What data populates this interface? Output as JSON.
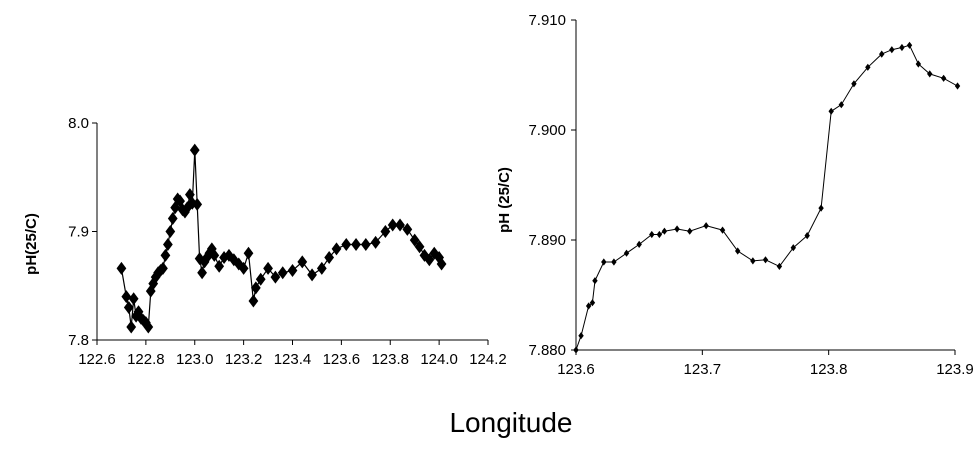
{
  "shared_xlabel": "Longitude",
  "colors": {
    "series": "#000000",
    "background": "#ffffff"
  },
  "chart_data": [
    {
      "type": "scatter",
      "title": "",
      "xlabel": "",
      "ylabel": "pH(25/C)",
      "xlim": [
        122.6,
        124.2
      ],
      "ylim": [
        7.8,
        8.0
      ],
      "xticks": [
        "122.6",
        "122.8",
        "123.0",
        "123.2",
        "123.4",
        "123.6",
        "123.8",
        "124.0",
        "124.2"
      ],
      "yticks": [
        "7.8",
        "7.9",
        "8.0"
      ],
      "grid": false,
      "legend": "none",
      "marker": "diamond",
      "series": [
        {
          "x": [
            122.7,
            122.72,
            122.73,
            122.74,
            122.75,
            122.76,
            122.77,
            122.78,
            122.79,
            122.8,
            122.81,
            122.82,
            122.83,
            122.84,
            122.85,
            122.86,
            122.87,
            122.88,
            122.89,
            122.9,
            122.91,
            122.92,
            122.93,
            122.94,
            122.95,
            122.96,
            122.97,
            122.98,
            122.99,
            123.0,
            123.01,
            123.02,
            123.03,
            123.04,
            123.05,
            123.06,
            123.07,
            123.08,
            123.1,
            123.12,
            123.14,
            123.16,
            123.18,
            123.2,
            123.22,
            123.24,
            123.25,
            123.27,
            123.3,
            123.33,
            123.36,
            123.4,
            123.44,
            123.48,
            123.52,
            123.55,
            123.58,
            123.62,
            123.66,
            123.7,
            123.74,
            123.78,
            123.81,
            123.84,
            123.87,
            123.9,
            123.92,
            123.94,
            123.96,
            123.98,
            124.0,
            124.01
          ],
          "y": [
            7.866,
            7.84,
            7.83,
            7.812,
            7.838,
            7.822,
            7.826,
            7.82,
            7.818,
            7.816,
            7.812,
            7.845,
            7.852,
            7.858,
            7.862,
            7.864,
            7.866,
            7.878,
            7.888,
            7.9,
            7.912,
            7.922,
            7.93,
            7.928,
            7.92,
            7.918,
            7.922,
            7.934,
            7.926,
            7.975,
            7.925,
            7.875,
            7.862,
            7.872,
            7.876,
            7.88,
            7.884,
            7.878,
            7.868,
            7.876,
            7.878,
            7.874,
            7.87,
            7.866,
            7.88,
            7.836,
            7.848,
            7.856,
            7.866,
            7.858,
            7.862,
            7.864,
            7.872,
            7.86,
            7.866,
            7.876,
            7.884,
            7.888,
            7.888,
            7.888,
            7.89,
            7.9,
            7.906,
            7.906,
            7.902,
            7.892,
            7.886,
            7.878,
            7.874,
            7.88,
            7.876,
            7.87
          ]
        }
      ]
    },
    {
      "type": "line",
      "title": "",
      "xlabel": "",
      "ylabel": "pH (25/C)",
      "xlim": [
        123.6,
        123.9
      ],
      "ylim": [
        7.88,
        7.91
      ],
      "xticks": [
        "123.6",
        "123.7",
        "123.8",
        "123.9"
      ],
      "yticks": [
        "7.880",
        "7.890",
        "7.900",
        "7.910"
      ],
      "grid": false,
      "legend": "none",
      "marker": "diamond",
      "series": [
        {
          "x": [
            123.6,
            123.604,
            123.61,
            123.613,
            123.615,
            123.622,
            123.63,
            123.64,
            123.65,
            123.66,
            123.666,
            123.67,
            123.68,
            123.69,
            123.703,
            123.716,
            123.728,
            123.74,
            123.75,
            123.761,
            123.772,
            123.783,
            123.794,
            123.802,
            123.81,
            123.82,
            123.831,
            123.842,
            123.85,
            123.858,
            123.864,
            123.871,
            123.88,
            123.891,
            123.902
          ],
          "y": [
            7.88,
            7.8813,
            7.884,
            7.8843,
            7.8863,
            7.888,
            7.888,
            7.8888,
            7.8896,
            7.8905,
            7.8905,
            7.8908,
            7.891,
            7.8908,
            7.8913,
            7.8909,
            7.889,
            7.8881,
            7.8882,
            7.8876,
            7.8893,
            7.8904,
            7.8929,
            7.9017,
            7.9023,
            7.9042,
            7.9057,
            7.9069,
            7.9073,
            7.9075,
            7.9077,
            7.906,
            7.9051,
            7.9047,
            7.904
          ]
        }
      ]
    }
  ]
}
